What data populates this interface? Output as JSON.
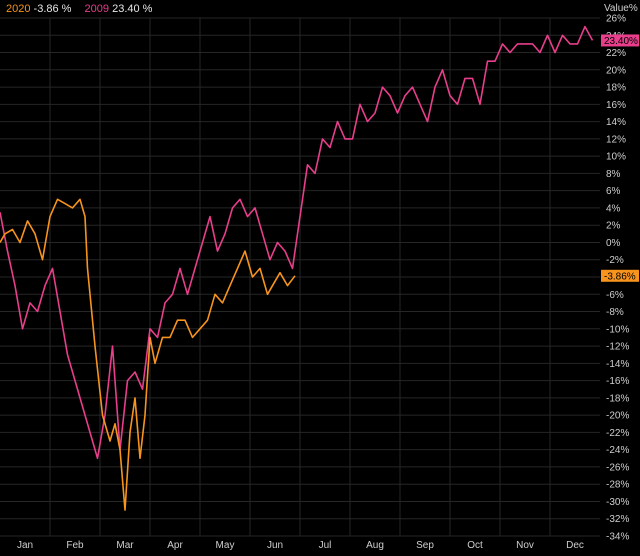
{
  "legend": {
    "s2020": {
      "name": "2020",
      "value": "-3.86 %",
      "color": "#f7941d"
    },
    "s2009": {
      "name": "2009",
      "value": "23.40 %",
      "color": "#e83e8c"
    }
  },
  "chart_data": {
    "type": "line",
    "ylabel": "Value%",
    "ylim": [
      -34,
      26
    ],
    "yticks": [
      26,
      24,
      22,
      20,
      18,
      16,
      14,
      12,
      10,
      8,
      6,
      4,
      2,
      0,
      -2,
      -4,
      -6,
      -8,
      -10,
      -12,
      -14,
      -16,
      -18,
      -20,
      -22,
      -24,
      -26,
      -28,
      -30,
      -32,
      -34
    ],
    "ytick_labels": [
      "26%",
      "24%",
      "22%",
      "20%",
      "18%",
      "16%",
      "14%",
      "12%",
      "10%",
      "8%",
      "6%",
      "4%",
      "2%",
      "0%",
      "-2%",
      "-4%",
      "-6%",
      "-8%",
      "-10%",
      "-12%",
      "-14%",
      "-16%",
      "-18%",
      "-20%",
      "-22%",
      "-24%",
      "-26%",
      "-28%",
      "-30%",
      "-32%",
      "-34%"
    ],
    "xlim": [
      0,
      12
    ],
    "months": [
      {
        "label": "Jan",
        "pos": 0.5
      },
      {
        "label": "Feb",
        "pos": 1.5
      },
      {
        "label": "Mar",
        "pos": 2.5
      },
      {
        "label": "Apr",
        "pos": 3.5
      },
      {
        "label": "May",
        "pos": 4.5
      },
      {
        "label": "Jun",
        "pos": 5.5
      },
      {
        "label": "Jul",
        "pos": 6.5
      },
      {
        "label": "Aug",
        "pos": 7.5
      },
      {
        "label": "Sep",
        "pos": 8.5
      },
      {
        "label": "Oct",
        "pos": 9.5
      },
      {
        "label": "Nov",
        "pos": 10.5
      },
      {
        "label": "Dec",
        "pos": 11.5
      }
    ],
    "grid": true,
    "legend_position": "top-left",
    "series": [
      {
        "name": "2009",
        "color": "#e83e8c",
        "end_label": "23.40%",
        "x": [
          0,
          0.15,
          0.3,
          0.45,
          0.6,
          0.75,
          0.9,
          1.05,
          1.2,
          1.35,
          1.5,
          1.65,
          1.8,
          1.95,
          2.1,
          2.25,
          2.4,
          2.55,
          2.7,
          2.85,
          3.0,
          3.15,
          3.3,
          3.45,
          3.6,
          3.75,
          3.9,
          4.05,
          4.2,
          4.35,
          4.5,
          4.65,
          4.8,
          4.95,
          5.1,
          5.25,
          5.4,
          5.55,
          5.7,
          5.85,
          6.0,
          6.15,
          6.3,
          6.45,
          6.6,
          6.75,
          6.9,
          7.05,
          7.2,
          7.35,
          7.5,
          7.65,
          7.8,
          7.95,
          8.1,
          8.25,
          8.4,
          8.55,
          8.7,
          8.85,
          9.0,
          9.15,
          9.3,
          9.45,
          9.6,
          9.75,
          9.9,
          10.05,
          10.2,
          10.35,
          10.5,
          10.65,
          10.8,
          10.95,
          11.1,
          11.25,
          11.4,
          11.55,
          11.7,
          11.85
        ],
        "y": [
          3.5,
          -1,
          -5,
          -10,
          -7,
          -8,
          -5,
          -3,
          -8,
          -13,
          -16,
          -19,
          -22,
          -25,
          -20,
          -12,
          -24,
          -16,
          -15,
          -17,
          -10,
          -11,
          -7,
          -6,
          -3,
          -6,
          -3,
          0,
          3,
          -1,
          1,
          4,
          5,
          3,
          4,
          1,
          -2,
          0,
          -1,
          -3,
          3,
          9,
          8,
          12,
          11,
          14,
          12,
          12,
          16,
          14,
          15,
          18,
          17,
          15,
          17,
          18,
          16,
          14,
          18,
          20,
          17,
          16,
          19,
          19,
          16,
          21,
          21,
          23,
          22,
          23,
          23,
          23,
          22,
          24,
          22,
          24,
          23,
          23,
          25,
          23.4
        ]
      },
      {
        "name": "2020",
        "color": "#f7941d",
        "end_label": "-3.86%",
        "x": [
          0,
          0.1,
          0.25,
          0.4,
          0.55,
          0.7,
          0.85,
          1.0,
          1.15,
          1.3,
          1.45,
          1.6,
          1.7,
          1.75,
          1.9,
          2.05,
          2.2,
          2.3,
          2.4,
          2.5,
          2.6,
          2.7,
          2.8,
          2.9,
          3.0,
          3.1,
          3.25,
          3.4,
          3.55,
          3.7,
          3.85,
          4.0,
          4.15,
          4.3,
          4.45,
          4.6,
          4.75,
          4.9,
          5.05,
          5.2,
          5.35,
          5.5,
          5.6,
          5.75,
          5.9
        ],
        "y": [
          0,
          1,
          1.5,
          0,
          2.5,
          1,
          -2,
          3,
          5,
          4.5,
          4,
          5,
          3,
          -3,
          -12,
          -20,
          -23,
          -21,
          -24,
          -31,
          -22,
          -18,
          -25,
          -20,
          -11,
          -14,
          -11,
          -11,
          -9,
          -9,
          -11,
          -10,
          -9,
          -6,
          -7,
          -5,
          -3,
          -1,
          -4,
          -3,
          -6,
          -4.5,
          -3.5,
          -5,
          -3.86
        ]
      }
    ]
  }
}
